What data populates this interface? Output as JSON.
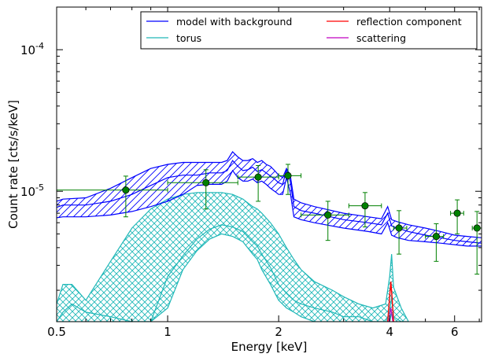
{
  "chart_data": {
    "type": "line",
    "title": "",
    "xlabel": "Energy [keV]",
    "ylabel": "Count rate [cts/s/keV]",
    "xscale": "log",
    "yscale": "log",
    "xlim": [
      0.5,
      7.1
    ],
    "ylim": [
      1.2e-06,
      0.0002
    ],
    "x_ticks": [
      {
        "value": 0.5,
        "label": "0.5"
      },
      {
        "value": 1,
        "label": "1"
      },
      {
        "value": 2,
        "label": "2"
      },
      {
        "value": 4,
        "label": "4"
      },
      {
        "value": 6,
        "label": "6"
      }
    ],
    "y_ticks": [
      {
        "value": 1e-05,
        "base": "10",
        "exp": "-5"
      },
      {
        "value": 0.0001,
        "base": "10",
        "exp": "-4"
      }
    ],
    "legend": {
      "position": "top-right",
      "columns": 2,
      "entries": [
        {
          "label": "model with background",
          "color": "#0000ff"
        },
        {
          "label": "reflection component",
          "color": "#ff0000"
        },
        {
          "label": "torus",
          "color": "#20b8b8"
        },
        {
          "label": "scattering",
          "color": "#c000c0"
        }
      ]
    },
    "series": [
      {
        "name": "model with background",
        "color": "#0000ff",
        "hatch": "diagonal",
        "x": [
          0.5,
          0.52,
          0.6,
          0.7,
          0.8,
          0.9,
          1.0,
          1.1,
          1.2,
          1.3,
          1.4,
          1.45,
          1.5,
          1.55,
          1.6,
          1.65,
          1.7,
          1.75,
          1.8,
          1.85,
          1.9,
          1.95,
          2.0,
          2.05,
          2.1,
          2.15,
          2.2,
          2.3,
          2.5,
          3.0,
          3.5,
          3.8,
          3.95,
          4.05,
          4.2,
          4.5,
          5.0,
          5.5,
          6.0,
          6.5,
          7.1
        ],
        "upper": [
          8.5e-06,
          8.8e-06,
          9e-06,
          1.05e-05,
          1.25e-05,
          1.45e-05,
          1.55e-05,
          1.6e-05,
          1.6e-05,
          1.6e-05,
          1.6e-05,
          1.65e-05,
          1.9e-05,
          1.75e-05,
          1.65e-05,
          1.65e-05,
          1.7e-05,
          1.6e-05,
          1.65e-05,
          1.55e-05,
          1.5e-05,
          1.4e-05,
          1.3e-05,
          1.25e-05,
          1.45e-05,
          1.3e-05,
          8.8e-06,
          8.3e-06,
          7.8e-06,
          7e-06,
          6.6e-06,
          6.4e-06,
          7.8e-06,
          6.3e-06,
          6.1e-06,
          5.8e-06,
          5.5e-06,
          5.2e-06,
          4.9e-06,
          4.8e-06,
          4.7e-06
        ],
        "middle": [
          7.7e-06,
          8e-06,
          8e-06,
          8.5e-06,
          9.5e-06,
          1.1e-05,
          1.25e-05,
          1.3e-05,
          1.3e-05,
          1.35e-05,
          1.35e-05,
          1.4e-05,
          1.65e-05,
          1.5e-05,
          1.4e-05,
          1.42e-05,
          1.48e-05,
          1.38e-05,
          1.42e-05,
          1.35e-05,
          1.28e-05,
          1.22e-05,
          1.15e-05,
          1.12e-05,
          1.42e-05,
          1.18e-05,
          7.8e-06,
          7.3e-06,
          7e-06,
          6.3e-06,
          6e-06,
          5.8e-06,
          7e-06,
          5.7e-06,
          5.5e-06,
          5.2e-06,
          4.9e-06,
          4.7e-06,
          4.5e-06,
          4.4e-06,
          4.3e-06
        ],
        "lower": [
          6.5e-06,
          6.6e-06,
          6.6e-06,
          6.8e-06,
          7.2e-06,
          7.8e-06,
          8.5e-06,
          9.5e-06,
          1.1e-05,
          1.12e-05,
          1.12e-05,
          1.18e-05,
          1.4e-05,
          1.25e-05,
          1.18e-05,
          1.18e-05,
          1.22e-05,
          1.15e-05,
          1.18e-05,
          1.12e-05,
          1.05e-05,
          1e-05,
          9.5e-06,
          9.5e-06,
          1.25e-05,
          9.8e-06,
          6.6e-06,
          6.3e-06,
          6e-06,
          5.5e-06,
          5.2e-06,
          5e-06,
          6e-06,
          4.9e-06,
          4.7e-06,
          4.5e-06,
          4.4e-06,
          4.3e-06,
          4.2e-06,
          4.1e-06,
          4.1e-06
        ]
      },
      {
        "name": "torus",
        "color": "#20b8b8",
        "hatch": "cross",
        "x": [
          0.5,
          0.52,
          0.55,
          0.6,
          0.7,
          0.8,
          0.9,
          1.0,
          1.1,
          1.2,
          1.3,
          1.4,
          1.5,
          1.6,
          1.7,
          1.75,
          1.8,
          1.9,
          2.0,
          2.1,
          2.2,
          2.3,
          2.5,
          2.8,
          3.0,
          3.3,
          3.6,
          3.9,
          4.0,
          4.05,
          4.1,
          4.3,
          4.5
        ],
        "upper": [
          1.6e-06,
          2.2e-06,
          2.2e-06,
          1.7e-06,
          3.2e-06,
          5.5e-06,
          7.5e-06,
          8.8e-06,
          9.5e-06,
          9.8e-06,
          9.8e-06,
          9.8e-06,
          9.5e-06,
          8.8e-06,
          7.8e-06,
          7.5e-06,
          7e-06,
          6e-06,
          5e-06,
          4e-06,
          3.3e-06,
          2.8e-06,
          2.3e-06,
          2e-06,
          1.8e-06,
          1.6e-06,
          1.5e-06,
          1.6e-06,
          2.5e-06,
          3.6e-06,
          2.1e-06,
          1.5e-06,
          1.2e-06
        ],
        "middle": [
          1.2e-06,
          1.4e-06,
          1.6e-06,
          1.4e-06,
          1.3e-06,
          1.2e-06,
          1.2e-06,
          2.5e-06,
          3.5e-06,
          4.6e-06,
          5.4e-06,
          5.8e-06,
          5.6e-06,
          5.2e-06,
          4.4e-06,
          4.1e-06,
          3.6e-06,
          2.9e-06,
          2.2e-06,
          1.9e-06,
          1.7e-06,
          1.6e-06,
          1.5e-06,
          1.4e-06,
          1.3e-06,
          1.3e-06,
          1.2e-06,
          1.2e-06,
          1.4e-06,
          1.8e-06,
          1.3e-06,
          1.2e-06,
          1.2e-06
        ],
        "lower": [
          1.2e-06,
          1.2e-06,
          1.2e-06,
          1.2e-06,
          1.2e-06,
          1.2e-06,
          1.2e-06,
          1.5e-06,
          2.8e-06,
          3.8e-06,
          4.6e-06,
          5e-06,
          4.8e-06,
          4.4e-06,
          3.6e-06,
          3.3e-06,
          2.8e-06,
          2.2e-06,
          1.7e-06,
          1.5e-06,
          1.4e-06,
          1.3e-06,
          1.2e-06,
          1.2e-06,
          1.2e-06,
          1.2e-06,
          1.2e-06,
          1.2e-06,
          1.2e-06,
          1.4e-06,
          1.2e-06,
          1.2e-06,
          1.2e-06
        ]
      },
      {
        "name": "reflection component",
        "color": "#ff0000",
        "x": [
          3.95,
          4.0,
          4.03,
          4.06,
          4.1
        ],
        "values": [
          1.2e-06,
          1.8e-06,
          2.3e-06,
          1.8e-06,
          1.2e-06
        ]
      },
      {
        "name": "scattering",
        "color": "#c000c0",
        "x": [
          3.98,
          4.03,
          4.08
        ],
        "values": [
          1.2e-06,
          1.5e-06,
          1.2e-06
        ]
      }
    ],
    "data_points": {
      "color": "#008000",
      "points": [
        {
          "x": 0.77,
          "y": 1.02e-05,
          "xerr": [
            0.5,
            1.0
          ],
          "yerr": [
            6.6e-06,
            1.28e-05
          ]
        },
        {
          "x": 1.27,
          "y": 1.15e-05,
          "xerr": [
            1.0,
            1.55
          ],
          "yerr": [
            7.5e-06,
            1.42e-05
          ]
        },
        {
          "x": 1.76,
          "y": 1.26e-05,
          "xerr": [
            1.55,
            2.0
          ],
          "yerr": [
            8.5e-06,
            1.52e-05
          ]
        },
        {
          "x": 2.12,
          "y": 1.29e-05,
          "xerr": [
            2.0,
            2.3
          ],
          "yerr": [
            9.5e-06,
            1.55e-05
          ]
        },
        {
          "x": 2.72,
          "y": 6.8e-06,
          "xerr": [
            2.3,
            3.1
          ],
          "yerr": [
            4.5e-06,
            8.5e-06
          ]
        },
        {
          "x": 3.43,
          "y": 7.9e-06,
          "xerr": [
            3.1,
            3.8
          ],
          "yerr": [
            5.6e-06,
            9.8e-06
          ]
        },
        {
          "x": 4.24,
          "y": 5.5e-06,
          "xerr": [
            4.1,
            4.45
          ],
          "yerr": [
            3.6e-06,
            7.3e-06
          ]
        },
        {
          "x": 5.35,
          "y": 4.8e-06,
          "xerr": [
            5.0,
            5.6
          ],
          "yerr": [
            3.2e-06,
            5.9e-06
          ]
        },
        {
          "x": 6.1,
          "y": 7e-06,
          "xerr": [
            5.85,
            6.35
          ],
          "yerr": [
            5e-06,
            8.7e-06
          ]
        },
        {
          "x": 6.9,
          "y": 5.5e-06,
          "xerr": [
            6.7,
            7.1
          ],
          "yerr": [
            2.6e-06,
            7.2e-06
          ]
        }
      ]
    }
  }
}
